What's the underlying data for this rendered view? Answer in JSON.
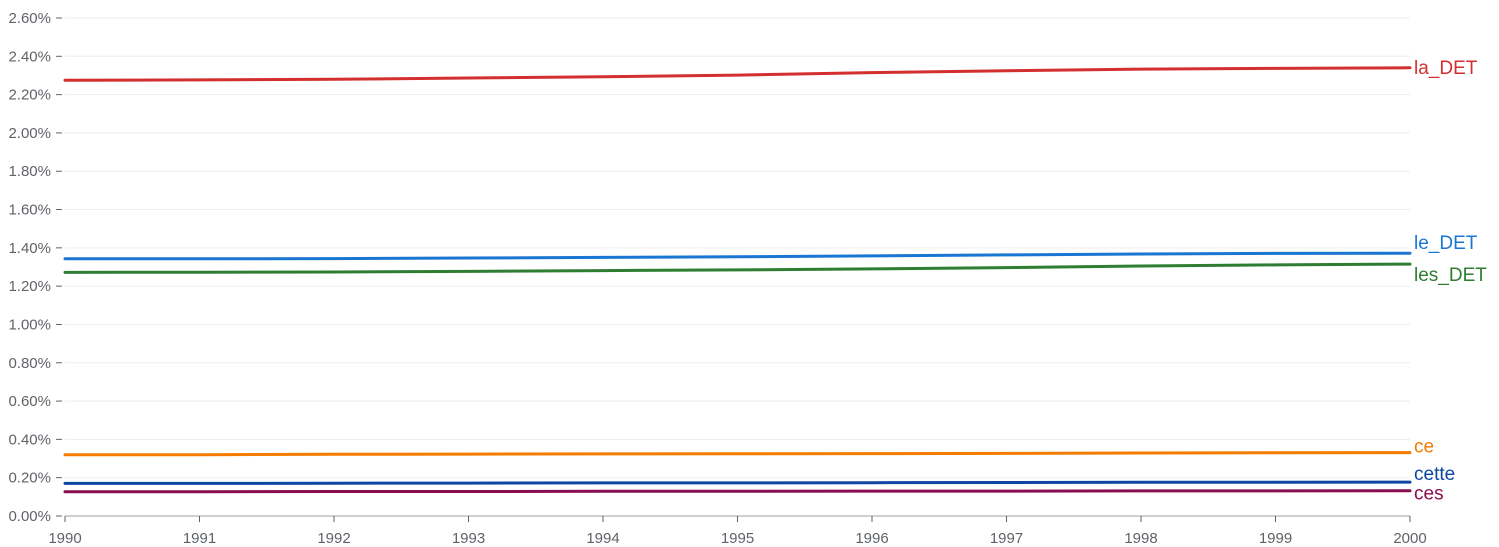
{
  "chart_data": {
    "type": "line",
    "x": [
      1990,
      1991,
      1992,
      1993,
      1994,
      1995,
      1996,
      1997,
      1998,
      1999,
      2000
    ],
    "x_tick_labels": [
      "1990",
      "1991",
      "1992",
      "1993",
      "1994",
      "1995",
      "1996",
      "1997",
      "1998",
      "1999",
      "2000"
    ],
    "y_tick_values": [
      0,
      0.2,
      0.4,
      0.6,
      0.8,
      1.0,
      1.2,
      1.4,
      1.6,
      1.8,
      2.0,
      2.2,
      2.4,
      2.6
    ],
    "y_tick_labels": [
      "0.00%",
      "0.20%",
      "0.40%",
      "0.60%",
      "0.80%",
      "1.00%",
      "1.20%",
      "1.40%",
      "1.60%",
      "1.80%",
      "2.00%",
      "2.20%",
      "2.40%",
      "2.60%"
    ],
    "xlim": [
      1990,
      2000
    ],
    "ylim": [
      0,
      2.6
    ],
    "y_unit": "%",
    "grid": "horizontal",
    "legend": "inline labels at right end of lines",
    "series": [
      {
        "name": "la_DET",
        "color": "#d32f2f",
        "values": [
          2.275,
          2.277,
          2.28,
          2.287,
          2.293,
          2.302,
          2.315,
          2.325,
          2.333,
          2.337,
          2.34
        ]
      },
      {
        "name": "le_DET",
        "color": "#1976d2",
        "values": [
          1.343,
          1.343,
          1.344,
          1.347,
          1.35,
          1.353,
          1.358,
          1.363,
          1.368,
          1.371,
          1.372
        ]
      },
      {
        "name": "les_DET",
        "color": "#2e7d32",
        "values": [
          1.272,
          1.273,
          1.274,
          1.277,
          1.281,
          1.285,
          1.29,
          1.297,
          1.305,
          1.311,
          1.315
        ]
      },
      {
        "name": "ce",
        "color": "#f57c00",
        "values": [
          0.32,
          0.32,
          0.322,
          0.323,
          0.324,
          0.325,
          0.326,
          0.327,
          0.329,
          0.33,
          0.331
        ]
      },
      {
        "name": "cette",
        "color": "#0d47a1",
        "values": [
          0.17,
          0.17,
          0.171,
          0.172,
          0.173,
          0.173,
          0.174,
          0.175,
          0.176,
          0.176,
          0.177
        ]
      },
      {
        "name": "ces",
        "color": "#880e4f",
        "values": [
          0.127,
          0.127,
          0.128,
          0.128,
          0.129,
          0.129,
          0.13,
          0.13,
          0.131,
          0.131,
          0.132
        ]
      }
    ]
  }
}
